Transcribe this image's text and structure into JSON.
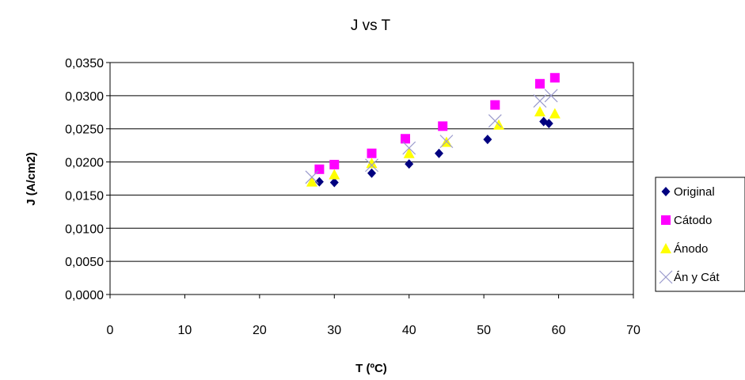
{
  "chart_data": {
    "type": "scatter",
    "title": "J vs T",
    "xlabel": "T (ºC)",
    "ylabel": "J (A/cm2)",
    "xlim": [
      0,
      70
    ],
    "ylim": [
      0,
      0.035
    ],
    "x_ticks": [
      "0",
      "10",
      "20",
      "30",
      "40",
      "50",
      "60",
      "70"
    ],
    "y_ticks": [
      "0,0000",
      "0,0050",
      "0,0100",
      "0,0150",
      "0,0200",
      "0,0250",
      "0,0300",
      "0,0350"
    ],
    "grid": "horizontal",
    "legend_position": "right",
    "series": [
      {
        "name": "Original",
        "marker": "diamond",
        "color": "#000080",
        "points": [
          [
            28,
            0.017
          ],
          [
            30,
            0.0169
          ],
          [
            35,
            0.0183
          ],
          [
            40,
            0.0197
          ],
          [
            44,
            0.0213
          ],
          [
            50.5,
            0.0234
          ],
          [
            58,
            0.0261
          ],
          [
            58.7,
            0.0258
          ]
        ]
      },
      {
        "name": "Cátodo",
        "marker": "square",
        "color": "#FF00FF",
        "points": [
          [
            28,
            0.0189
          ],
          [
            30,
            0.0196
          ],
          [
            35,
            0.0213
          ],
          [
            39.5,
            0.0235
          ],
          [
            44.5,
            0.0254
          ],
          [
            51.5,
            0.0286
          ],
          [
            57.5,
            0.0318
          ],
          [
            59.5,
            0.0327
          ]
        ]
      },
      {
        "name": "Ánodo",
        "marker": "triangle",
        "color": "#FFFF00",
        "points": [
          [
            27,
            0.017
          ],
          [
            30,
            0.0181
          ],
          [
            35,
            0.0198
          ],
          [
            40,
            0.0213
          ],
          [
            45,
            0.023
          ],
          [
            52,
            0.0256
          ],
          [
            57.5,
            0.0276
          ],
          [
            59.5,
            0.0273
          ]
        ]
      },
      {
        "name": "Án y Cát",
        "marker": "x",
        "color": "#9999CC",
        "points": [
          [
            27,
            0.0177
          ],
          [
            35,
            0.0195
          ],
          [
            40,
            0.0221
          ],
          [
            45,
            0.0231
          ],
          [
            51.5,
            0.0262
          ],
          [
            57.5,
            0.0292
          ],
          [
            59,
            0.03
          ]
        ]
      }
    ]
  }
}
